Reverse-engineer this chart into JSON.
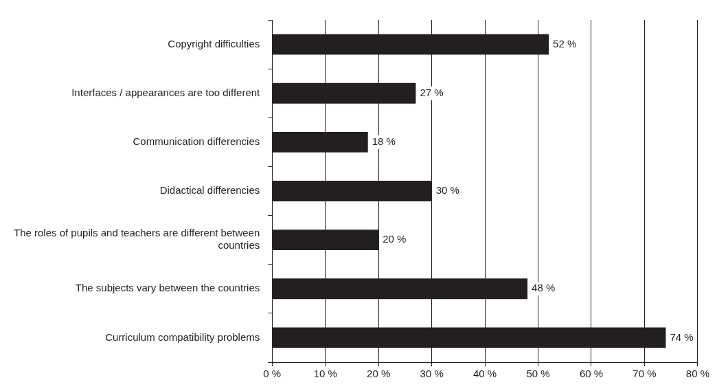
{
  "chart_data": {
    "type": "bar",
    "orientation": "horizontal",
    "categories": [
      "Copyright difficulties",
      "Interfaces / appearances are too different",
      "Communication differencies",
      "Didactical differencies",
      "The roles of pupils and teachers are different between countries",
      "The subjects vary between the countries",
      "Curriculum compatibility problems"
    ],
    "values": [
      52,
      27,
      18,
      30,
      20,
      48,
      74
    ],
    "value_labels": [
      "52 %",
      "27 %",
      "18 %",
      "30 %",
      "20 %",
      "48 %",
      "74 %"
    ],
    "color": "#231f20",
    "xlim": [
      0,
      80
    ],
    "xticks": [
      {
        "value": 0,
        "label": "0 %"
      },
      {
        "value": 10,
        "label": "10 %"
      },
      {
        "value": 20,
        "label": "20 %"
      },
      {
        "value": 30,
        "label": "30 %"
      },
      {
        "value": 40,
        "label": "40 %"
      },
      {
        "value": 50,
        "label": "50 %"
      },
      {
        "value": 60,
        "label": "60 %"
      },
      {
        "value": 70,
        "label": "70 %"
      },
      {
        "value": 80,
        "label": "80 %"
      }
    ],
    "grid": "x",
    "legend": false
  }
}
